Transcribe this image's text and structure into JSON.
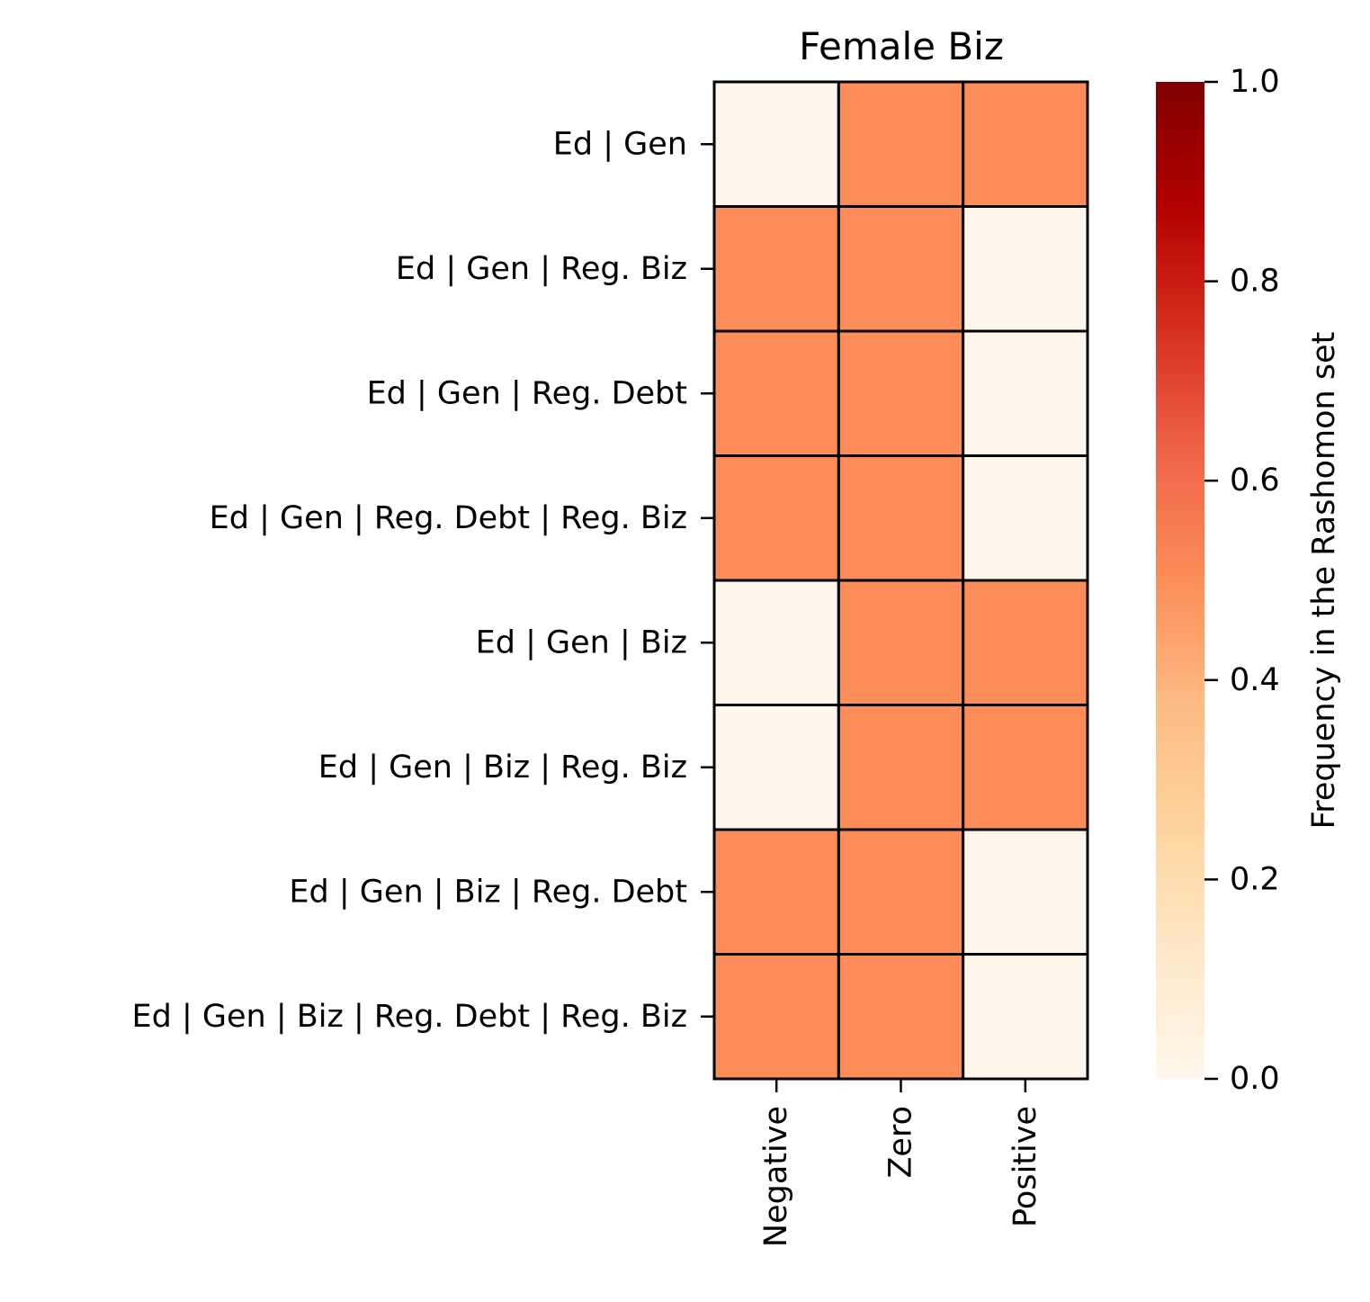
{
  "chart_data": {
    "type": "heatmap",
    "title": "Female Biz",
    "xlabel": "",
    "ylabel": "",
    "columns": [
      "Negative",
      "Zero",
      "Positive"
    ],
    "rows": [
      "Ed | Gen",
      "Ed | Gen | Reg. Biz",
      "Ed | Gen | Reg. Debt",
      "Ed | Gen | Reg. Debt | Reg. Biz",
      "Ed | Gen | Biz",
      "Ed | Gen | Biz | Reg. Biz",
      "Ed | Gen | Biz | Reg. Debt",
      "Ed | Gen | Biz | Reg. Debt | Reg. Biz"
    ],
    "values": [
      [
        0.0,
        0.5,
        0.5
      ],
      [
        0.5,
        0.5,
        0.0
      ],
      [
        0.5,
        0.5,
        0.0
      ],
      [
        0.5,
        0.5,
        0.0
      ],
      [
        0.0,
        0.5,
        0.5
      ],
      [
        0.0,
        0.5,
        0.5
      ],
      [
        0.5,
        0.5,
        0.0
      ],
      [
        0.5,
        0.5,
        0.0
      ]
    ],
    "colorbar": {
      "label": "Frequency in the Rashomon set",
      "range": [
        0,
        1
      ],
      "ticks": [
        "0.0",
        "0.2",
        "0.4",
        "0.6",
        "0.8",
        "1.0"
      ],
      "colormap": "OrRd",
      "color_stops": [
        "#fff7ec",
        "#fee8c8",
        "#fdd49e",
        "#fdbb84",
        "#fc8d59",
        "#ef6548",
        "#d7301f",
        "#b30000",
        "#7f0000"
      ]
    },
    "grid": false,
    "cell_border_color": "#000000"
  }
}
